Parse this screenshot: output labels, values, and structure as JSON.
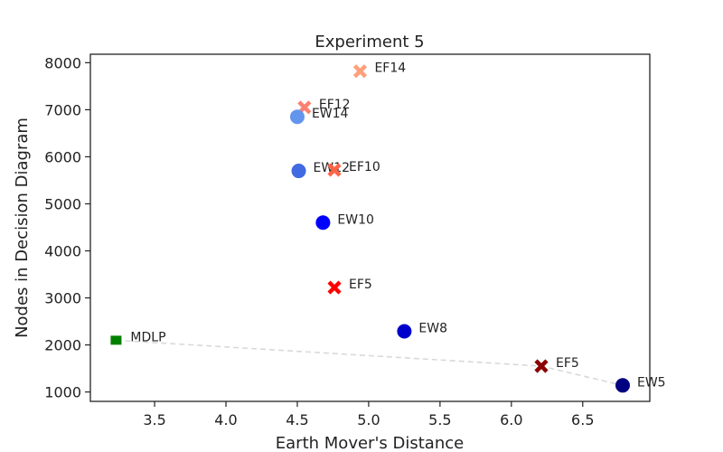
{
  "chart_data": {
    "type": "scatter",
    "title": "Experiment 5",
    "xlabel": "Earth Mover's Distance",
    "ylabel": "Nodes in Decision Diagram",
    "xlim": [
      3.05,
      6.97
    ],
    "ylim": [
      800,
      8180
    ],
    "xticks": [
      3.5,
      4.0,
      4.5,
      5.0,
      5.5,
      6.0,
      6.5
    ],
    "xtick_labels": [
      "3.5",
      "4.0",
      "4.5",
      "5.0",
      "5.5",
      "6.0",
      "6.5"
    ],
    "yticks": [
      1000,
      2000,
      3000,
      4000,
      5000,
      6000,
      7000,
      8000
    ],
    "ytick_labels": [
      "1000",
      "2000",
      "3000",
      "4000",
      "5000",
      "6000",
      "7000",
      "8000"
    ],
    "grid": false,
    "points": [
      {
        "label": "EF14",
        "x": 4.94,
        "y": 7820,
        "marker": "x",
        "color": "#ffa07a"
      },
      {
        "label": "EF12",
        "x": 4.55,
        "y": 7050,
        "marker": "x",
        "color": "#fa8072"
      },
      {
        "label": "EW14",
        "x": 4.5,
        "y": 6850,
        "marker": "circle",
        "color": "#6495ed"
      },
      {
        "label": "EW12",
        "x": 4.51,
        "y": 5700,
        "marker": "circle",
        "color": "#4169e1"
      },
      {
        "label": "EF10",
        "x": 4.76,
        "y": 5720,
        "marker": "x",
        "color": "#ff6347"
      },
      {
        "label": "EW10",
        "x": 4.68,
        "y": 4600,
        "marker": "circle",
        "color": "#0000ff"
      },
      {
        "label": "EF5",
        "x": 4.76,
        "y": 3220,
        "marker": "x",
        "color": "#ff0000"
      },
      {
        "label": "EW8",
        "x": 5.25,
        "y": 2290,
        "marker": "circle",
        "color": "#0000cd"
      },
      {
        "label": "MDLP",
        "x": 3.23,
        "y": 2100,
        "marker": "square",
        "color": "#008000"
      },
      {
        "label": "EF5",
        "x": 6.21,
        "y": 1550,
        "marker": "x",
        "color": "#8b0000"
      },
      {
        "label": "EW5",
        "x": 6.78,
        "y": 1140,
        "marker": "circle",
        "color": "#000080"
      }
    ],
    "pareto_front": [
      {
        "x": 3.23,
        "y": 2100
      },
      {
        "x": 6.21,
        "y": 1550
      },
      {
        "x": 6.78,
        "y": 1140
      }
    ],
    "pareto_color": "#d9d9d9"
  }
}
